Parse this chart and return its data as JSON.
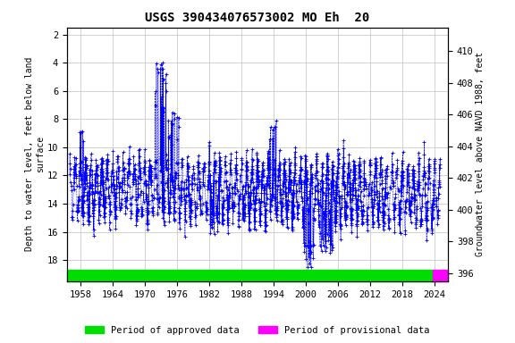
{
  "title": "USGS 390434076573002 MO Eh  20",
  "ylabel_left": "Depth to water level, feet below land\nsurface",
  "ylabel_right": "Groundwater level above NAVD 1988, feet",
  "ylim_left": [
    19.5,
    1.5
  ],
  "ylim_right": [
    395.5,
    411.5
  ],
  "xlim": [
    1955.5,
    2026.5
  ],
  "xticks": [
    1958,
    1964,
    1970,
    1976,
    1982,
    1988,
    1994,
    2000,
    2006,
    2012,
    2018,
    2024
  ],
  "yticks_left": [
    2,
    4,
    6,
    8,
    10,
    12,
    14,
    16,
    18
  ],
  "yticks_right": [
    396,
    398,
    400,
    402,
    404,
    406,
    408,
    410
  ],
  "data_color": "#0000ff",
  "marker": "+",
  "linestyle": "--",
  "linewidth": 0.4,
  "markersize": 2.5,
  "markeredgewidth": 0.6,
  "grid_color": "#c0c0c0",
  "background_color": "#ffffff",
  "approved_color": "#00dd00",
  "provisional_color": "#ff00ff",
  "title_fontsize": 10,
  "axis_label_fontsize": 7,
  "tick_fontsize": 7.5,
  "legend_fontsize": 7.5,
  "approved_bar_xstart": 1955.5,
  "approved_bar_xend": 2023.7,
  "provisional_bar_xstart": 2023.7,
  "provisional_bar_xend": 2026.5
}
